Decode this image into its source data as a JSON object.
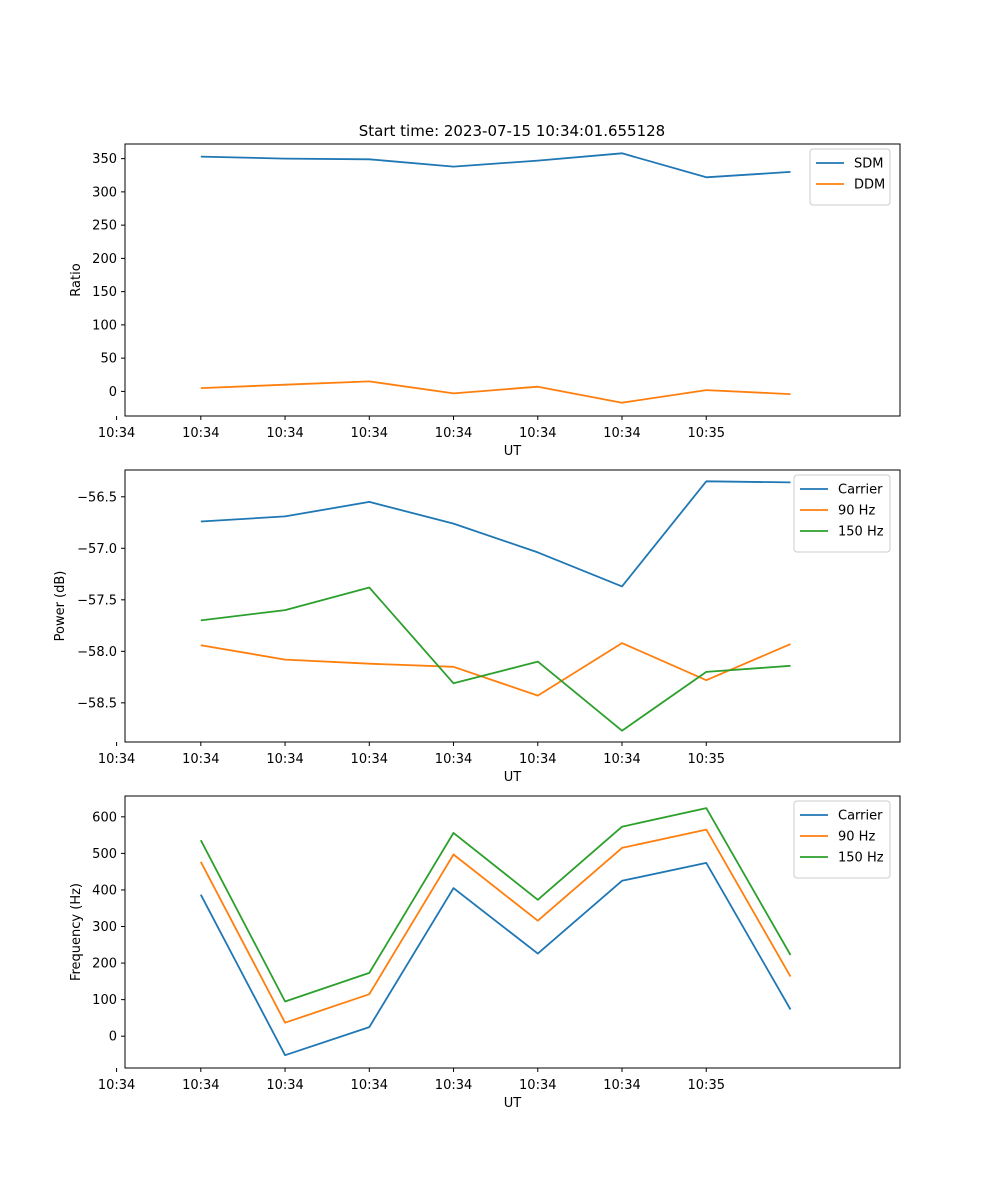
{
  "figure_title": "Start time: 2023-07-15 10:34:01.655128",
  "colors": {
    "blue": "#1f77b4",
    "orange": "#ff7f0e",
    "green": "#2ca02c"
  },
  "chart_data": [
    {
      "type": "line",
      "title": "Start time: 2023-07-15 10:34:01.655128",
      "xlabel": "UT",
      "ylabel": "Ratio",
      "x_ticks": [
        "10:34",
        "10:34",
        "10:34",
        "10:34",
        "10:34",
        "10:34",
        "10:34",
        "10:35"
      ],
      "x": [
        1,
        2,
        3,
        4,
        5,
        6,
        7,
        8
      ],
      "xlim": [
        0.1,
        9.3
      ],
      "ylim": [
        -37,
        372
      ],
      "y_ticks": [
        0,
        50,
        100,
        150,
        200,
        250,
        300,
        350
      ],
      "legend": "top-right",
      "series": [
        {
          "name": "SDM",
          "color": "#1f77b4",
          "values": [
            353,
            350,
            349,
            338,
            347,
            358,
            322,
            330
          ]
        },
        {
          "name": "DDM",
          "color": "#ff7f0e",
          "values": [
            5,
            10,
            15,
            -3,
            7,
            -17,
            2,
            -4
          ]
        }
      ]
    },
    {
      "type": "line",
      "title": "",
      "xlabel": "UT",
      "ylabel": "Power (dB)",
      "x_ticks": [
        "10:34",
        "10:34",
        "10:34",
        "10:34",
        "10:34",
        "10:34",
        "10:34",
        "10:35"
      ],
      "x": [
        1,
        2,
        3,
        4,
        5,
        6,
        7,
        8
      ],
      "xlim": [
        0.1,
        9.3
      ],
      "ylim": [
        -58.88,
        -56.24
      ],
      "y_ticks": [
        -58.5,
        -58.0,
        -57.5,
        -57.0,
        -56.5
      ],
      "y_tick_labels": [
        "−58.5",
        "−58.0",
        "−57.5",
        "−57.0",
        "−56.5"
      ],
      "legend": "top-right",
      "series": [
        {
          "name": "Carrier",
          "color": "#1f77b4",
          "values": [
            -56.74,
            -56.69,
            -56.55,
            -56.76,
            -57.04,
            -57.37,
            -56.35,
            -56.36
          ]
        },
        {
          "name": "90 Hz",
          "color": "#ff7f0e",
          "values": [
            -57.94,
            -58.08,
            -58.12,
            -58.15,
            -58.43,
            -57.92,
            -58.28,
            -57.93
          ]
        },
        {
          "name": "150 Hz",
          "color": "#2ca02c",
          "values": [
            -57.7,
            -57.6,
            -57.38,
            -58.31,
            -58.1,
            -58.77,
            -58.2,
            -58.14
          ]
        }
      ]
    },
    {
      "type": "line",
      "title": "",
      "xlabel": "UT",
      "ylabel": "Frequency (Hz)",
      "x_ticks": [
        "10:34",
        "10:34",
        "10:34",
        "10:34",
        "10:34",
        "10:34",
        "10:34",
        "10:35"
      ],
      "x": [
        1,
        2,
        3,
        4,
        5,
        6,
        7,
        8
      ],
      "xlim": [
        0.1,
        9.3
      ],
      "ylim": [
        -87,
        657
      ],
      "y_ticks": [
        0,
        100,
        200,
        300,
        400,
        500,
        600
      ],
      "legend": "top-right",
      "series": [
        {
          "name": "Carrier",
          "color": "#1f77b4",
          "values": [
            387,
            -52,
            25,
            405,
            226,
            425,
            474,
            73
          ]
        },
        {
          "name": "90 Hz",
          "color": "#ff7f0e",
          "values": [
            477,
            37,
            115,
            497,
            316,
            515,
            565,
            163
          ]
        },
        {
          "name": "150 Hz",
          "color": "#2ca02c",
          "values": [
            536,
            95,
            173,
            556,
            373,
            573,
            624,
            222
          ]
        }
      ]
    }
  ]
}
